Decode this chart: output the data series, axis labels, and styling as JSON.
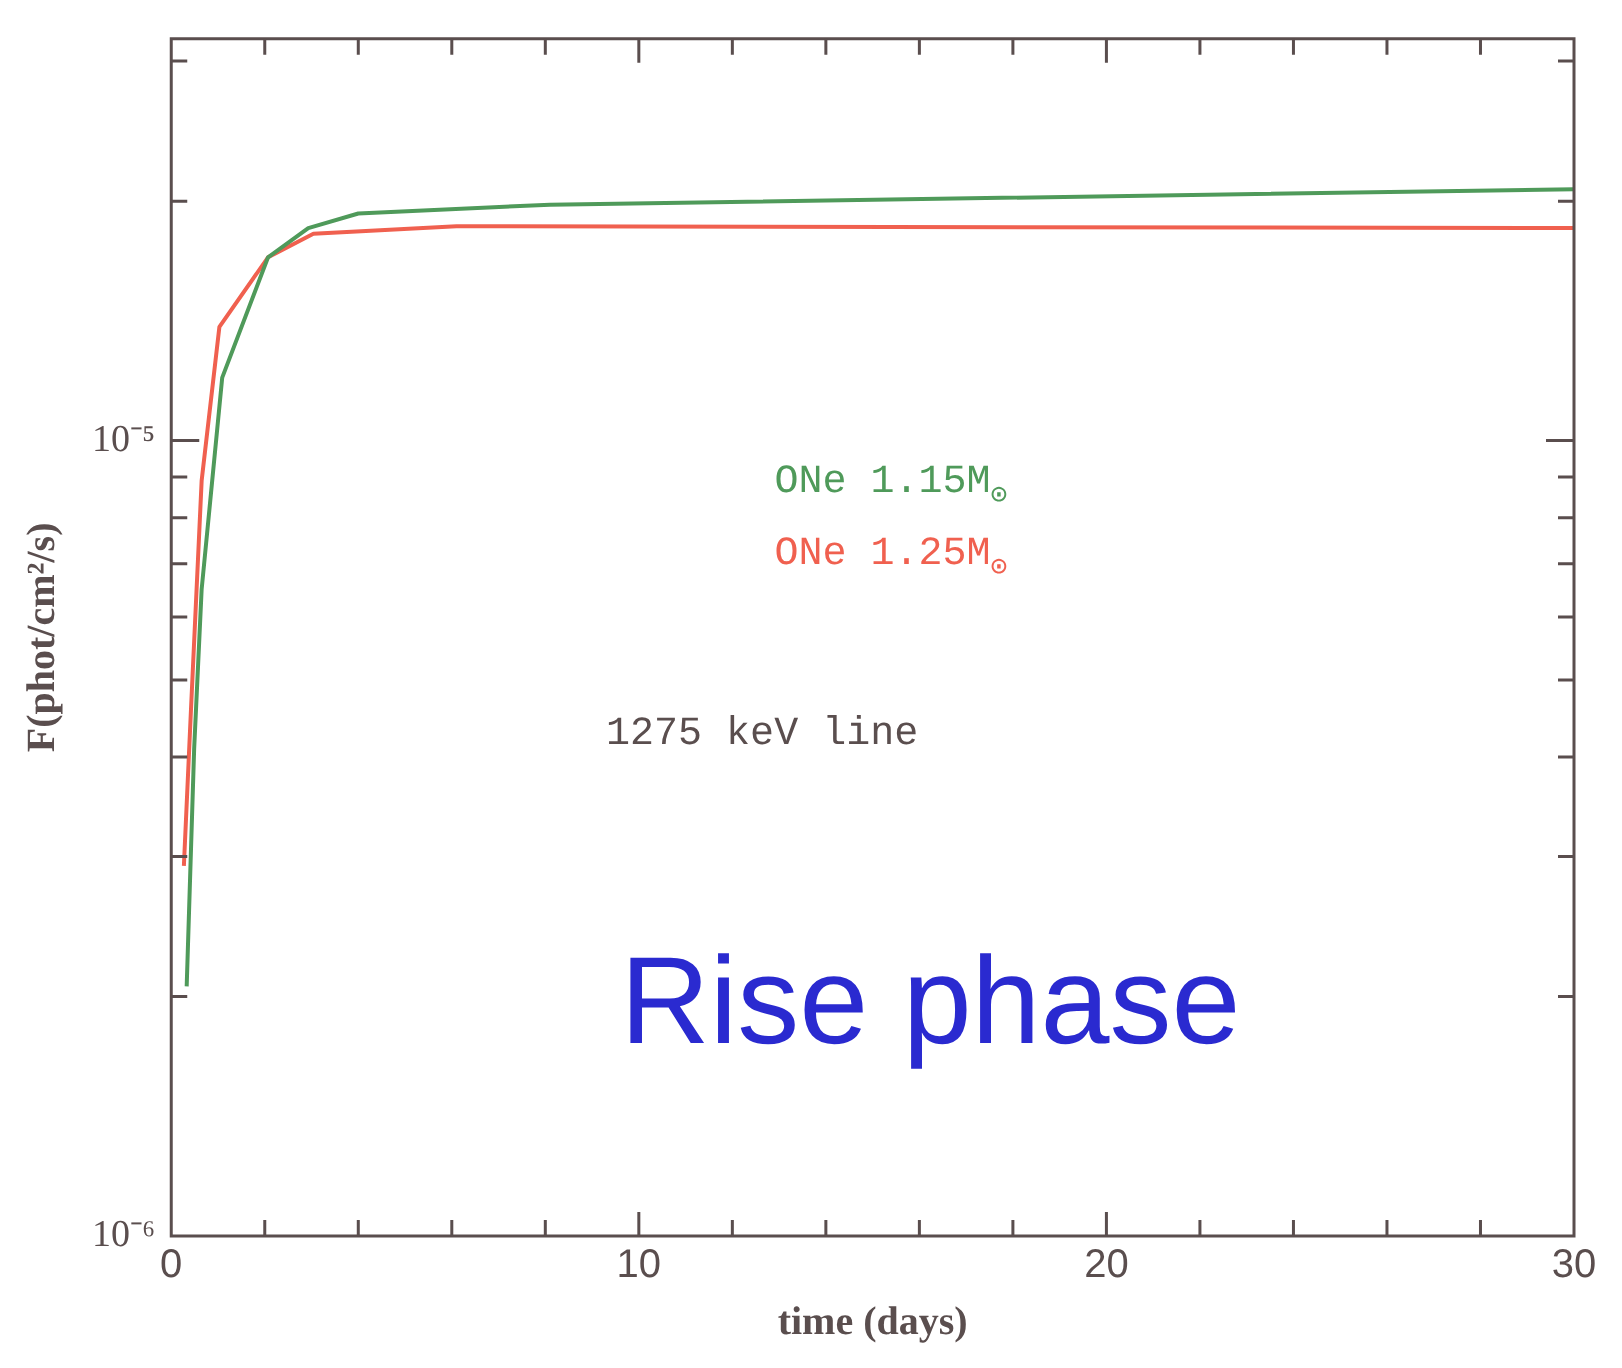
{
  "chart_data": {
    "type": "line",
    "xlabel": "time (days)",
    "ylabel": "F(phot/cm²/s)",
    "annotations": [
      "1275 keV line",
      "Rise phase"
    ],
    "log": "y",
    "grid": false,
    "legend": false,
    "marker": "none",
    "line_style": "solid",
    "xlim": [
      0,
      30
    ],
    "ylim": [
      1e-06,
      3.2e-05
    ],
    "xticks": [
      0,
      {
        "value": 2,
        "label": null
      },
      {
        "value": 4,
        "label": null
      },
      {
        "value": 6,
        "label": null
      },
      {
        "value": 8,
        "label": null
      },
      10,
      {
        "value": 12,
        "label": null
      },
      {
        "value": 14,
        "label": null
      },
      {
        "value": 16,
        "label": null
      },
      {
        "value": 18,
        "label": null
      },
      20,
      {
        "value": 22,
        "label": null
      },
      {
        "value": 24,
        "label": null
      },
      {
        "value": 26,
        "label": null
      },
      {
        "value": 28,
        "label": null
      },
      30
    ],
    "yticks": [
      {
        "value": 1e-06,
        "label": "10⁻⁶"
      },
      {
        "value": 2e-06,
        "label": null
      },
      {
        "value": 3e-06,
        "label": null
      },
      {
        "value": 4e-06,
        "label": null
      },
      {
        "value": 5e-06,
        "label": null
      },
      {
        "value": 6e-06,
        "label": null
      },
      {
        "value": 7e-06,
        "label": null
      },
      {
        "value": 8e-06,
        "label": null
      },
      {
        "value": 9e-06,
        "label": null
      },
      {
        "value": 1e-05,
        "label": "10⁻⁵"
      },
      {
        "value": 2e-05,
        "label": null
      },
      {
        "value": 3e-05,
        "label": null
      }
    ],
    "series": [
      {
        "name": "ONe 1.15M$_{⊙}$",
        "color": "#4f9a5a",
        "x": [
          0.33,
          0.49,
          0.65,
          1.09,
          2.07,
          2.93,
          4.0,
          8.1,
          30
        ],
        "values": [
          2.06e-06,
          4.1e-06,
          6.5e-06,
          1.2e-05,
          1.7e-05,
          1.85e-05,
          1.93e-05,
          1.98e-05,
          2.07e-05
        ]
      },
      {
        "name": "ONe 1.25M$_{⊙}$",
        "color": "#f0604f",
        "x": [
          0.27,
          0.43,
          0.65,
          1.03,
          2.07,
          3.04,
          6.1,
          30
        ],
        "values": [
          2.92e-06,
          4.7e-06,
          8.9e-06,
          1.39e-05,
          1.7e-05,
          1.82e-05,
          1.86e-05,
          1.85e-05
        ]
      }
    ]
  }
}
